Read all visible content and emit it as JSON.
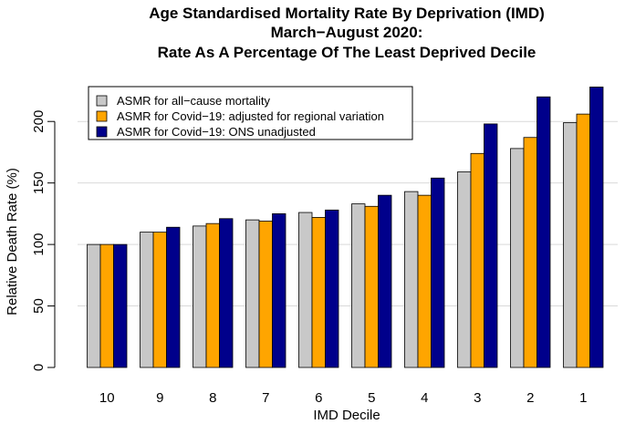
{
  "chart_data": {
    "type": "bar",
    "title_lines": [
      "Age Standardised Mortality Rate By Deprivation (IMD)",
      "March−August 2020:",
      "Rate As A Percentage Of The Least Deprived Decile"
    ],
    "xlabel": "IMD Decile",
    "ylabel": "Relative Death Rate (%)",
    "ylim": [
      0,
      235
    ],
    "yticks": [
      0,
      50,
      100,
      150,
      200
    ],
    "grid": "horizontal",
    "legend_position": "top-left",
    "categories": [
      "10",
      "9",
      "8",
      "7",
      "6",
      "5",
      "4",
      "3",
      "2",
      "1"
    ],
    "series": [
      {
        "name": "ASMR for all−cause mortality",
        "color": "#c8c8c8",
        "values": [
          100,
          110,
          115,
          120,
          126,
          133,
          143,
          159,
          178,
          199
        ]
      },
      {
        "name": "ASMR for Covid−19: adjusted for regional variation",
        "color": "#ffa500",
        "values": [
          100,
          110,
          117,
          119,
          122,
          131,
          140,
          174,
          187,
          206
        ]
      },
      {
        "name": "ASMR for Covid−19: ONS unadjusted",
        "color": "#00008b",
        "values": [
          100,
          114,
          121,
          125,
          128,
          140,
          154,
          198,
          220,
          228
        ]
      }
    ]
  }
}
